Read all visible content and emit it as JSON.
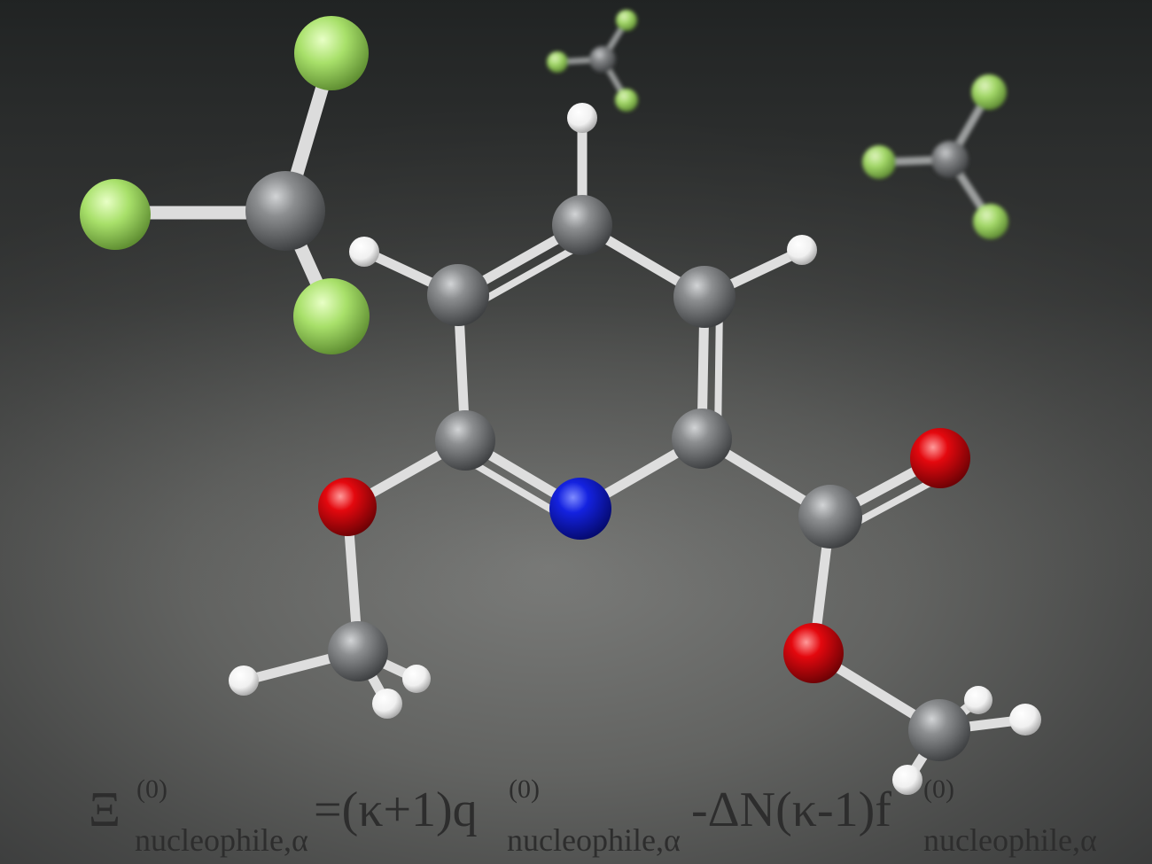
{
  "scene": {
    "background_colors": {
      "top": "#1f2222",
      "floor": "#6a6b69"
    },
    "atom_colors": {
      "carbon": "#707274",
      "hydrogen": "#ffffff",
      "nitrogen": "#0a1ad8",
      "oxygen": "#e0080e",
      "fluorine": "#a6e06a"
    }
  },
  "formula": {
    "symbol": "Ξ",
    "superscript": "(0)",
    "subscript": "nucleophile,α",
    "term1": "=(κ+1)q",
    "term1_superscript": "(0)",
    "term1_subscript": "nucleophile,α",
    "term2": "-ΔN(κ-1)f",
    "term2_superscript": "(0)",
    "term2_subscript": "nucleophile,α"
  }
}
